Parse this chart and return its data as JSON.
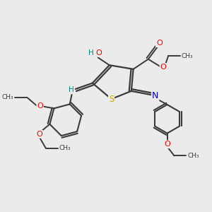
{
  "background_color": "#ebebeb",
  "bond_color": "#3a3a3a",
  "atom_colors": {
    "O": "#ff0000",
    "S": "#ccaa00",
    "N": "#0000cc",
    "H": "#008888",
    "C": "#3a3a3a"
  },
  "figsize": [
    3.0,
    3.0
  ],
  "dpi": 100,
  "xlim": [
    0,
    10
  ],
  "ylim": [
    0,
    10
  ]
}
